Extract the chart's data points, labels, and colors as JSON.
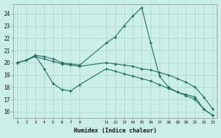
{
  "xlabel": "Humidex (Indice chaleur)",
  "bg_color": "#cceee8",
  "grid_color": "#aad8d0",
  "line_color": "#1a6b5a",
  "ylim": [
    15.5,
    24.8
  ],
  "xlim": [
    0.5,
    23.5
  ],
  "yticks": [
    16,
    17,
    18,
    19,
    20,
    21,
    22,
    23,
    24
  ],
  "xticks": [
    1,
    2,
    3,
    4,
    5,
    6,
    7,
    8,
    11,
    12,
    13,
    14,
    15,
    16,
    17,
    18,
    19,
    20,
    21,
    22,
    23
  ],
  "series1_x": [
    1,
    2,
    3,
    4,
    5,
    6,
    7,
    8,
    11,
    12,
    13,
    14,
    15,
    16,
    17,
    18,
    19,
    20,
    21,
    22,
    23
  ],
  "series1_y": [
    20.0,
    20.2,
    20.6,
    19.5,
    18.3,
    17.8,
    17.7,
    18.2,
    19.5,
    19.3,
    19.1,
    18.9,
    18.7,
    18.5,
    18.2,
    17.9,
    17.6,
    17.3,
    17.0,
    16.2,
    15.7
  ],
  "series2_x": [
    1,
    2,
    3,
    4,
    5,
    6,
    7,
    8,
    11,
    12,
    13,
    14,
    15,
    16,
    17,
    18,
    19,
    20,
    21,
    22,
    23
  ],
  "series2_y": [
    20.0,
    20.2,
    20.5,
    20.3,
    20.1,
    19.9,
    19.8,
    19.7,
    20.0,
    19.9,
    19.8,
    19.7,
    19.5,
    19.4,
    19.2,
    19.0,
    18.7,
    18.4,
    18.0,
    17.2,
    16.2
  ],
  "series3_x": [
    1,
    2,
    3,
    4,
    5,
    6,
    7,
    8,
    11,
    12,
    13,
    14,
    15,
    16,
    17,
    18,
    19,
    20,
    21,
    22,
    23
  ],
  "series3_y": [
    20.0,
    20.2,
    20.6,
    20.5,
    20.3,
    20.0,
    19.9,
    19.8,
    21.6,
    22.1,
    23.0,
    23.8,
    24.5,
    21.6,
    18.9,
    18.0,
    17.6,
    17.4,
    17.2,
    16.2,
    15.7
  ]
}
